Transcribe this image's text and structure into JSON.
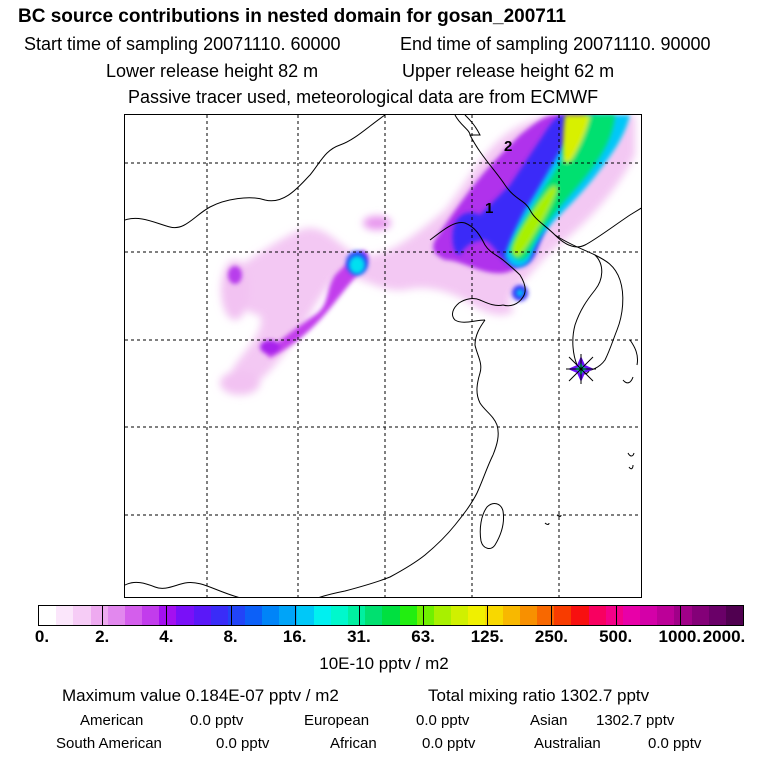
{
  "header": {
    "title": "BC  source contributions in nested domain for gosan_200711",
    "start_time_label": "Start time of sampling 20071110. 60000",
    "end_time_label": "End time of sampling 20071110. 90000",
    "lower_release_label": "Lower release height   82 m",
    "upper_release_label": "Upper release height   62 m",
    "tracer_note": "Passive tracer used, meteorological data are from ECMWF"
  },
  "map": {
    "contour_labels": [
      "1",
      "2"
    ],
    "receptor_marker_icon": "receptor-star-icon",
    "gridlines": "dashed",
    "colors": {
      "coastline": "#000000",
      "grid": "#000000"
    }
  },
  "colorbar": {
    "labels": [
      "0.",
      "2.",
      "4.",
      "8.",
      "16.",
      "31.",
      "63.",
      "125.",
      "250.",
      "500.",
      "1000.",
      "2000."
    ],
    "segments": [
      "#ffffff",
      "#fbe6fb",
      "#f6ccf6",
      "#eeaaf0",
      "#e288ee",
      "#d45eec",
      "#c23cec",
      "#a410f0",
      "#7a10f8",
      "#5a18f8",
      "#3a2cf8",
      "#2244f8",
      "#0c60f8",
      "#0084f8",
      "#00a4f8",
      "#00c8f8",
      "#00f0f0",
      "#00f8cc",
      "#00f0a0",
      "#00e070",
      "#00e040",
      "#22ee10",
      "#70f000",
      "#a8f000",
      "#d0f000",
      "#f0f000",
      "#f8d800",
      "#f8b800",
      "#f89000",
      "#f86800",
      "#f83c00",
      "#f81010",
      "#f80060",
      "#f40088",
      "#e800a8",
      "#d400a8",
      "#bc0098",
      "#a00088",
      "#840078",
      "#6a0068",
      "#500050"
    ],
    "units": "10E-10 pptv / m2"
  },
  "stats": {
    "max_value": "Maximum value  0.184E-07 pptv / m2",
    "total_mixing": "Total mixing ratio     1302.7 pptv",
    "american_label": "American",
    "american_value": "0.0 pptv",
    "european_label": "European",
    "european_value": "0.0 pptv",
    "asian_label": "Asian",
    "asian_value": "1302.7 pptv",
    "south_american_label": "South American",
    "south_american_value": "0.0 pptv",
    "african_label": "African",
    "african_value": "0.0 pptv",
    "australian_label": "Australian",
    "australian_value": "0.0 pptv"
  }
}
